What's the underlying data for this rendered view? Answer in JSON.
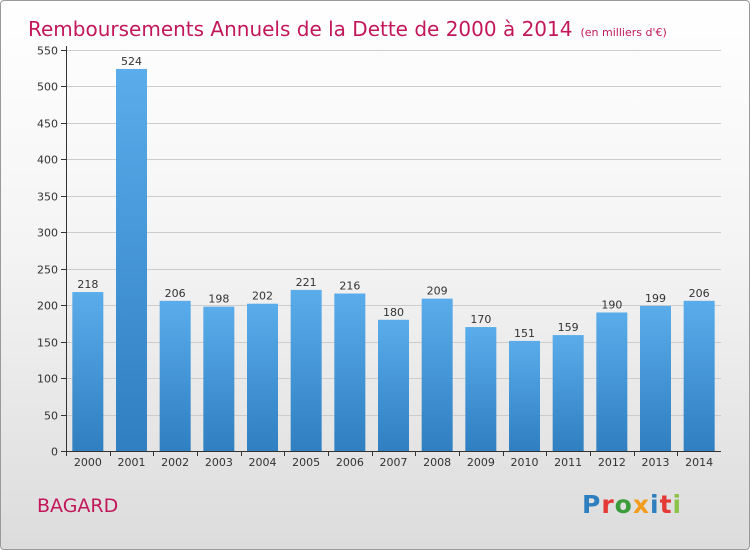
{
  "header": {
    "title": "Remboursements Annuels de la Dette de 2000 à 2014",
    "unit": "(en milliers d'€)"
  },
  "footer": {
    "place": "BAGARD",
    "brand": "Proxiti",
    "brand_colors": [
      "#2e7fbf",
      "#e53935",
      "#3a9c3a",
      "#f29c1f",
      "#2e7fbf",
      "#e53935",
      "#8bc34a"
    ]
  },
  "chart_data": {
    "type": "bar",
    "categories": [
      "2000",
      "2001",
      "2002",
      "2003",
      "2004",
      "2005",
      "2006",
      "2007",
      "2008",
      "2009",
      "2010",
      "2011",
      "2012",
      "2013",
      "2014"
    ],
    "values": [
      218,
      524,
      206,
      198,
      202,
      221,
      216,
      180,
      209,
      170,
      151,
      159,
      190,
      199,
      206
    ],
    "title": "Remboursements Annuels de la Dette de 2000 à 2014",
    "xlabel": "",
    "ylabel": "",
    "ylim": [
      0,
      550
    ],
    "yticks": [
      0,
      50,
      100,
      150,
      200,
      250,
      300,
      350,
      400,
      450,
      500,
      550
    ],
    "grid": true,
    "data_labels": true,
    "colors": {
      "bar_top": "#5aacea",
      "bar_bottom": "#2f7fc1",
      "grid": "#cccccc",
      "axis": "#333333"
    }
  }
}
